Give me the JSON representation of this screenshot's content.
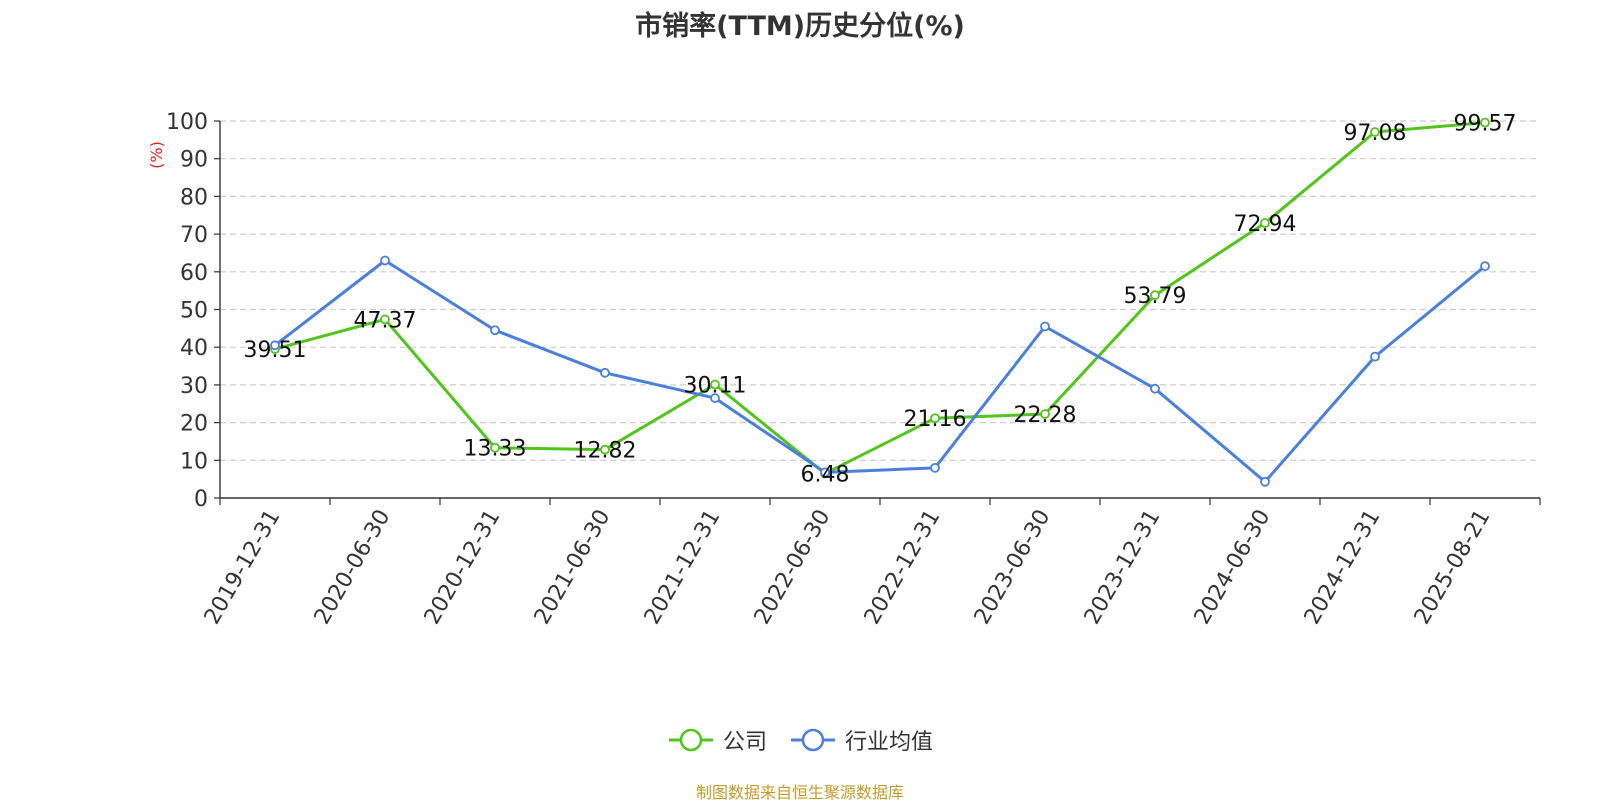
{
  "title": "市销率(TTM)历史分位(%)",
  "source_note": "制图数据来自恒生聚源数据库",
  "colors": {
    "company": "#52c41a",
    "industry": "#4a7fdb",
    "unit": "#e02020",
    "axis": "#333333",
    "grid": "#cccccc"
  },
  "chart_data": {
    "type": "line",
    "title": "市销率(TTM)历史分位(%)",
    "y_unit": "(%)",
    "ylim": [
      0,
      100
    ],
    "yticks": [
      0,
      10,
      20,
      30,
      40,
      50,
      60,
      70,
      80,
      90,
      100
    ],
    "grid": true,
    "legend_position": "bottom-center",
    "categories": [
      "2019-12-31",
      "2020-06-30",
      "2020-12-31",
      "2021-06-30",
      "2021-12-31",
      "2022-06-30",
      "2022-12-31",
      "2023-06-30",
      "2023-12-31",
      "2024-06-30",
      "2024-12-31",
      "2025-08-21"
    ],
    "series": [
      {
        "name": "公司",
        "color": "#52c41a",
        "show_labels": true,
        "values": [
          39.51,
          47.37,
          13.33,
          12.82,
          30.11,
          6.48,
          21.16,
          22.28,
          53.79,
          72.94,
          97.08,
          99.57
        ]
      },
      {
        "name": "行业均值",
        "color": "#4a7fdb",
        "show_labels": false,
        "values": [
          40.5,
          63.0,
          44.5,
          33.2,
          26.5,
          6.8,
          8.0,
          45.5,
          29.0,
          4.3,
          37.5,
          61.5
        ]
      }
    ]
  }
}
